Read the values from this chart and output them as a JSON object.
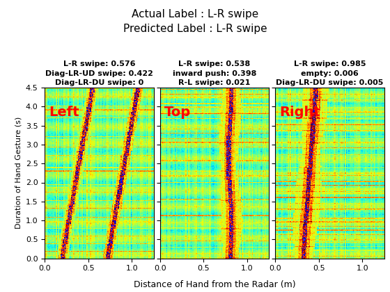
{
  "title_line1": "Actual Label : L-R swipe",
  "title_line2": "Predicted Label : L-R swipe",
  "panels": [
    {
      "label": "Left",
      "label_color": "red",
      "annotations": [
        "L-R swipe: 0.576",
        "Diag-LR-UD swipe: 0.422",
        "Diag-LR-DU swipe: 0"
      ],
      "gesture_type": "left_swipe"
    },
    {
      "label": "Top",
      "label_color": "red",
      "annotations": [
        "L-R swipe: 0.538",
        "inward push: 0.398",
        "R-L swipe: 0.021"
      ],
      "gesture_type": "top_swipe"
    },
    {
      "label": "Right",
      "label_color": "red",
      "annotations": [
        "L-R swipe: 0.985",
        "empty: 0.006",
        "Diag-LR-DU swipe: 0.005"
      ],
      "gesture_type": "right_swipe"
    }
  ],
  "xlim": [
    0,
    1.25
  ],
  "ylim": [
    0,
    4.5
  ],
  "xticks": [
    0,
    0.5,
    1
  ],
  "yticks": [
    0,
    0.5,
    1.0,
    1.5,
    2.0,
    2.5,
    3.0,
    3.5,
    4.0,
    4.5
  ],
  "xlabel": "Distance of Hand from the Radar (m)",
  "ylabel": "Duration of Hand Gesture (s)",
  "colormap": "jet",
  "title_fontsize": 11,
  "anno_fontsize": 8,
  "label_fontsize": 14
}
